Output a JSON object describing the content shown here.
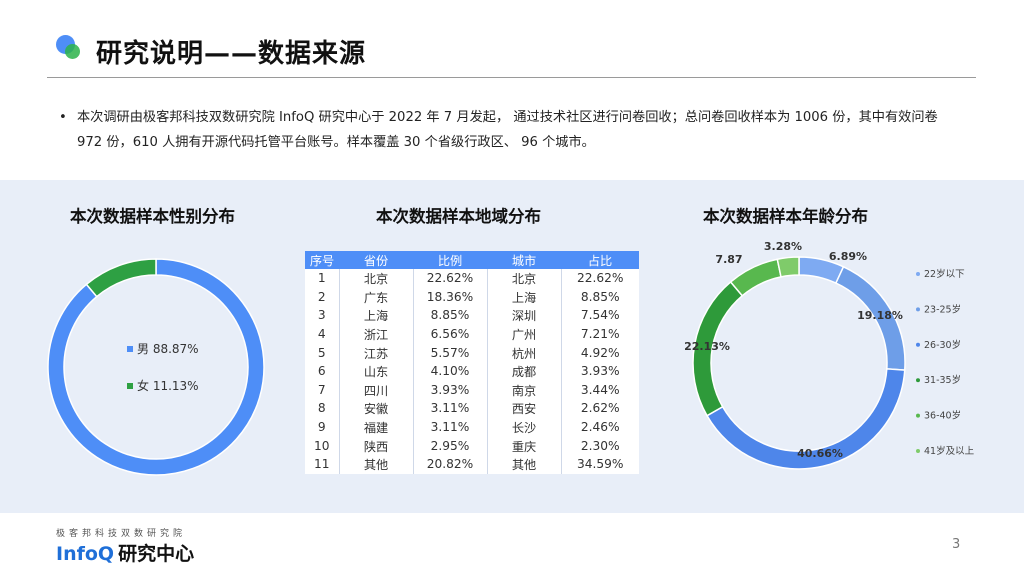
{
  "header": {
    "title": "研究说明——数据来源"
  },
  "intro": {
    "bullet": "•",
    "text": "本次调研由极客邦科技双数研究院 InfoQ 研究中心于 2022 年 7 月发起， 通过技术社区进行问卷回收；总问卷回收样本为 1006 份，其中有效问卷 972 份，610 人拥有开源代码托管平台账号。样本覆盖 30 个省级行政区、 96 个城市。"
  },
  "chart_data": [
    {
      "type": "pie",
      "title": "本次数据样本性别分布",
      "labels": [
        "男",
        "女"
      ],
      "values": [
        88.87,
        11.13
      ],
      "value_labels": [
        "88.87%",
        "11.13%"
      ],
      "colors": [
        "#4e8ef7",
        "#2ea043"
      ],
      "legend_placement": "center"
    },
    {
      "type": "table",
      "title": "本次数据样本地域分布",
      "columns": [
        "序号",
        "省份",
        "比例",
        "城市",
        "占比"
      ],
      "rows": [
        [
          "1",
          "北京",
          "22.62%",
          "北京",
          "22.62%"
        ],
        [
          "2",
          "广东",
          "18.36%",
          "上海",
          "8.85%"
        ],
        [
          "3",
          "上海",
          "8.85%",
          "深圳",
          "7.54%"
        ],
        [
          "4",
          "浙江",
          "6.56%",
          "广州",
          "7.21%"
        ],
        [
          "5",
          "江苏",
          "5.57%",
          "杭州",
          "4.92%"
        ],
        [
          "6",
          "山东",
          "4.10%",
          "成都",
          "3.93%"
        ],
        [
          "7",
          "四川",
          "3.93%",
          "南京",
          "3.44%"
        ],
        [
          "8",
          "安徽",
          "3.11%",
          "西安",
          "2.62%"
        ],
        [
          "9",
          "福建",
          "3.11%",
          "长沙",
          "2.46%"
        ],
        [
          "10",
          "陕西",
          "2.95%",
          "重庆",
          "2.30%"
        ],
        [
          "11",
          "其他",
          "20.82%",
          "其他",
          "34.59%"
        ]
      ]
    },
    {
      "type": "pie",
      "title": "本次数据样本年龄分布",
      "labels": [
        "22岁以下",
        "23-25岁",
        "26-30岁",
        "31-35岁",
        "36-40岁",
        "41岁及以上"
      ],
      "values": [
        6.89,
        19.18,
        40.66,
        22.13,
        7.87,
        3.28
      ],
      "value_labels": [
        "6.89%",
        "19.18%",
        "40.66%",
        "22.13%",
        "7.87",
        "3.28%"
      ],
      "colors": [
        "#7eaaf2",
        "#6e9ee8",
        "#4e86ea",
        "#2e9a3a",
        "#58b84e",
        "#7fcb6a"
      ],
      "legend_placement": "right"
    }
  ],
  "footer": {
    "brand_small": "极客邦科技双数研究院",
    "brand_en": "InfoQ",
    "brand_cn": "研究中心",
    "page": "3"
  }
}
